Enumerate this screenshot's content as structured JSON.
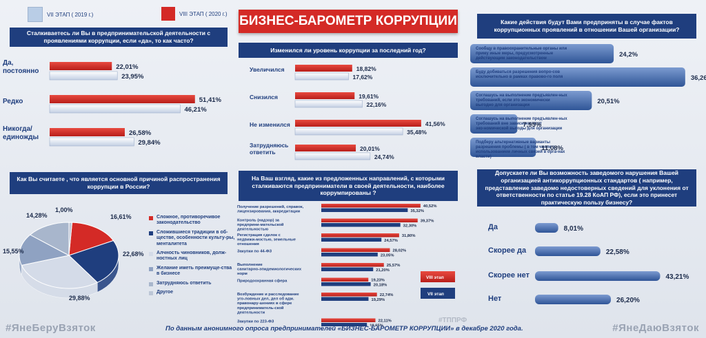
{
  "legend": {
    "stage7": "VII ЭТАП ( 2019 г.)",
    "stage8": "VIII ЭТАП ( 2020 г.)"
  },
  "title": "БИЗНЕС-БАРОМЕТР КОРРУПЦИИ",
  "footer": "По данным анонимного опроса предпринимателей «БИЗНЕС-БАРОМЕТР КОРРУПЦИИ» в декабре 2020 года.",
  "hashtags": {
    "left": "#ЯнеБеруВзяток",
    "center": "#ТППРФ",
    "right": "#ЯнеДаюВзяток"
  },
  "colors": {
    "red": "#d42a26",
    "navy": "#1f3e7e",
    "lightblue": "#c9d4e6",
    "grayblue": "#a8b6cc",
    "blue": "#4a6fae"
  },
  "chart_data": [
    {
      "id": "encounter",
      "type": "bar",
      "title": "Сталкиваетесь ли Вы в предпринимательской деятельности с проявлениями коррупции, если «да», то как часто?",
      "categories": [
        "Да, постоянно",
        "Редко",
        "Никогда/ единожды"
      ],
      "series": [
        {
          "name": "VIII ЭТАП ( 2020 г.)",
          "values": [
            22.01,
            51.41,
            26.58
          ]
        },
        {
          "name": "VII ЭТАП ( 2019 г.)",
          "values": [
            23.95,
            46.21,
            29.84
          ]
        }
      ]
    },
    {
      "id": "change",
      "type": "bar",
      "title": "Изменился ли уровень коррупции за последний год?",
      "categories": [
        "Увеличился",
        "Снизился",
        "Не изменился",
        "Затрудняюсь ответить"
      ],
      "series": [
        {
          "name": "VIII ЭТАП ( 2020 г.)",
          "values": [
            18.82,
            19.61,
            41.56,
            20.01
          ]
        },
        {
          "name": "VII ЭТАП ( 2019 г.)",
          "values": [
            17.62,
            22.16,
            35.48,
            24.74
          ]
        }
      ]
    },
    {
      "id": "actions",
      "type": "bar",
      "title": "Какие действия будут Вами предприняты в случае фактов коррупционных проявлений в отношении Вашей организации?",
      "categories": [
        "Сообщу в правоохранительные органы или приму иные меры, предусмотренные действующим законодательством",
        "Буду добиваться разрешения вопро-сов исключительно в рамках правово-го поля",
        "Соглашусь на выполнение предъявлен-ных требований, если это экономически выгодно для организации",
        "Соглашусь на выполнение предъявлен-ных требований вне зависимости от эко-номической выгоды для организации",
        "Подберу альтернативные варианты разрешения проблемы ( в том числе с использованием личных связей в орга-нах власти)"
      ],
      "values": [
        24.2,
        36.26,
        20.51,
        7.95,
        11.08
      ],
      "labels": [
        "24,2%",
        "36,26%",
        "20,51%",
        "7,95%",
        "11,08%"
      ]
    },
    {
      "id": "reasons",
      "type": "pie",
      "title": "Как Вы считаете , что является основной причиной распространения коррупции в России?",
      "categories": [
        "Сложное, противоречивое законодательство",
        "Сложившиеся традиции в об-ществе, особенности культу-ры, менталитета",
        "Алчность чиновников, долж-ностных лиц",
        "Желание иметь преимуще-ства в бизнесе",
        "Затрудняюсь ответить",
        "Другое"
      ],
      "values": [
        16.61,
        22.68,
        29.88,
        15.55,
        14.28,
        1.0
      ],
      "labels": [
        "16,61%",
        "22,68%",
        "29,88%",
        "15,55%",
        "14,28%",
        "1,00%"
      ],
      "slice_colors": [
        "#d42a26",
        "#1f3e7e",
        "#d4dbe8",
        "#8fa2c2",
        "#a8b6cc",
        "#bcc6d6"
      ]
    },
    {
      "id": "areas",
      "type": "bar",
      "title": "На Ваш взгляд, какие из предложенных направлений, с которыми сталкиваются предприниматели в своей деятельности, наиболее коррумпированы ?",
      "categories": [
        "Получение разрешений, справок, лицензирования, аккредитации",
        "Контроль (надзор) за предприни-мательской деятельностью",
        "Регистрация сделок с недвижи-мостью, земельные отношения",
        "Закупки по 44-ФЗ",
        "Выполнение санитарно-эпидемиологических норм",
        "Природоохранная сфера",
        "Возбуждение и расследование уго-ловных дел, дел об адм. правонару-шениях в сфере предприниматель-ской деятельности",
        "Закупки по 223-ФЗ"
      ],
      "series": [
        {
          "name": "VIII этап",
          "values": [
            40.52,
            39.37,
            31.8,
            28.02,
            25.57,
            19.23,
            22.74,
            22.11
          ],
          "labels": [
            "40,52%",
            "39,37%",
            "31,80%",
            "28,02%",
            "25,57%",
            "19,23%",
            "22,74%",
            "22,11%"
          ]
        },
        {
          "name": "VII этап",
          "values": [
            35.32,
            32.3,
            24.57,
            23.05,
            21.2,
            20.18,
            19.29,
            18.65
          ],
          "labels": [
            "35,32%",
            "32,30%",
            "24,57%",
            "23,05%",
            "21,20%",
            "20,18%",
            "19,29%",
            "18,65%"
          ]
        }
      ]
    },
    {
      "id": "reporting",
      "type": "bar",
      "title": "Допускаете ли Вы возможность заведомого нарушения Вашей организацией антикоррупционных стандартов ( например, представление заведомо недостоверных сведений для уклонения от ответственности по статье 19.28 КоАП РФ), если это принесет практическую пользу бизнесу?",
      "categories": [
        "Да",
        "Скорее да",
        "Скорее нет",
        "Нет"
      ],
      "values": [
        8.01,
        22.58,
        43.21,
        26.2
      ],
      "labels": [
        "8,01%",
        "22,58%",
        "43,21%",
        "26,20%"
      ]
    }
  ],
  "text_labels": {
    "encounter_vals8": [
      "22,01%",
      "51,41%",
      "26,58%"
    ],
    "encounter_vals7": [
      "23,95%",
      "46,21%",
      "29,84%"
    ],
    "encounter_cats": [
      "Да,\nпостоянно",
      "Редко",
      "Никогда/\nединожды"
    ],
    "change_vals8": [
      "18,82%",
      "19,61%",
      "41,56%",
      "20,01%"
    ],
    "change_vals7": [
      "17,62%",
      "22,16%",
      "35,48%",
      "24,74%"
    ],
    "change_cats": [
      "Увеличился",
      "Снизился",
      "Не изменился",
      "Затрудняюсь\nответить"
    ],
    "areas_legend8": "VIII этап",
    "areas_legend7": "VII этап"
  }
}
